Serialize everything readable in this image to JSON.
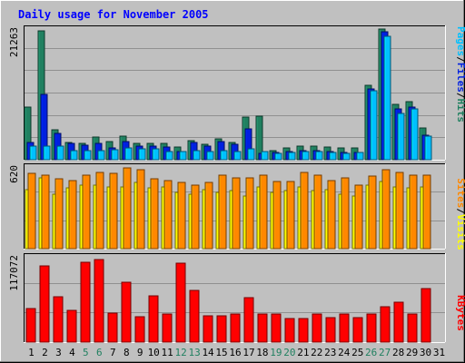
{
  "title": "Daily usage for November 2005",
  "colors": {
    "background": "#c0c0c0",
    "plot_bg": "#c0c0c0",
    "grid": "#909090",
    "title": "#0000ff",
    "hits": "#208060",
    "files": "#0020e0",
    "pages": "#00c0ff",
    "visits": "#ffff00",
    "sites": "#ff8800",
    "kbytes": "#ff0000",
    "weekend_label": "#208060",
    "day_label": "#000000"
  },
  "chart_data": [
    {
      "type": "bar",
      "panel": "hits-files-pages",
      "ymax": 21263,
      "ymax_label": "21263",
      "legend": {
        "pages": "Pages",
        "files": "Files",
        "hits": "Hits",
        "sep1": "/",
        "sep2": "/"
      },
      "categories": [
        "1",
        "2",
        "3",
        "4",
        "5",
        "6",
        "7",
        "8",
        "9",
        "10",
        "11",
        "12",
        "13",
        "14",
        "15",
        "16",
        "17",
        "18",
        "19",
        "20",
        "21",
        "22",
        "23",
        "24",
        "25",
        "26",
        "27",
        "28",
        "29",
        "30",
        "31"
      ],
      "weekend_days": [
        "5",
        "6",
        "12",
        "13",
        "19",
        "20",
        "26",
        "27"
      ],
      "series": [
        {
          "name": "Hits",
          "values": [
            8500,
            21000,
            4900,
            2800,
            2600,
            3700,
            3000,
            3800,
            2700,
            2700,
            2600,
            2100,
            3100,
            2500,
            3400,
            2800,
            7000,
            7100,
            1500,
            1900,
            2200,
            2200,
            2000,
            1900,
            1900,
            12100,
            21200,
            9000,
            9400,
            5100,
            0
          ]
        },
        {
          "name": "Files",
          "values": [
            2800,
            10600,
            4300,
            2600,
            2300,
            2600,
            1900,
            3000,
            2200,
            2200,
            2100,
            1400,
            2800,
            2200,
            3000,
            2500,
            5000,
            1100,
            1200,
            1300,
            1500,
            1500,
            1400,
            1200,
            1200,
            11500,
            20800,
            8300,
            8600,
            4000,
            0
          ]
        },
        {
          "name": "Pages",
          "values": [
            2200,
            2200,
            2200,
            1500,
            1500,
            1500,
            1600,
            1900,
            1800,
            1700,
            1400,
            1300,
            1500,
            1300,
            1500,
            1300,
            1700,
            1300,
            1100,
            1200,
            1300,
            1300,
            1200,
            1100,
            1200,
            11200,
            20100,
            7600,
            8200,
            3800,
            0
          ]
        }
      ]
    },
    {
      "type": "bar",
      "panel": "visits-sites",
      "ymax": 620,
      "ymax_label": "620",
      "legend": {
        "sites": "Sites",
        "visits": "Visits",
        "sep1": "/"
      },
      "series": [
        {
          "name": "Visits",
          "values": [
            450,
            540,
            410,
            460,
            480,
            480,
            470,
            470,
            500,
            460,
            470,
            430,
            410,
            450,
            430,
            440,
            400,
            470,
            430,
            440,
            470,
            440,
            450,
            410,
            400,
            480,
            510,
            470,
            460,
            470,
            0
          ]
        },
        {
          "name": "Sites",
          "values": [
            570,
            560,
            530,
            520,
            560,
            580,
            570,
            610,
            600,
            530,
            520,
            500,
            480,
            500,
            560,
            540,
            540,
            560,
            510,
            510,
            580,
            560,
            520,
            540,
            480,
            550,
            600,
            580,
            560,
            560,
            0
          ]
        }
      ]
    },
    {
      "type": "bar",
      "panel": "kbytes",
      "ymax": 117072,
      "ymax_label": "117072",
      "legend": {
        "kbytes": "KBytes"
      },
      "series": [
        {
          "name": "KBytes",
          "values": [
            46000,
            104000,
            62000,
            43000,
            110000,
            113000,
            40000,
            82000,
            35000,
            63000,
            38000,
            108000,
            71000,
            36000,
            36000,
            38000,
            61000,
            39000,
            39000,
            32000,
            33000,
            38000,
            34000,
            39000,
            34000,
            38000,
            49000,
            55000,
            39000,
            73000,
            0
          ]
        }
      ]
    }
  ]
}
